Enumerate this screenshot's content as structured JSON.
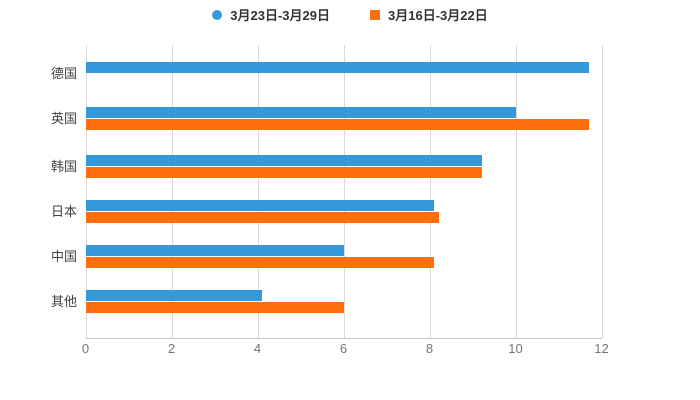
{
  "chart_data": {
    "type": "bar",
    "orientation": "horizontal",
    "title": "",
    "categories": [
      "德国",
      "英国",
      "韩国",
      "日本",
      "中国",
      "其他"
    ],
    "category_slugs": [
      "germany",
      "uk",
      "south-korea",
      "japan",
      "china",
      "other"
    ],
    "series": [
      {
        "name": "3月23日-3月29日",
        "color": "#3499db",
        "marker": "circle",
        "values": [
          11.7,
          10.0,
          9.2,
          8.1,
          6.0,
          4.1
        ]
      },
      {
        "name": "3月16日-3月22日",
        "color": "#ff6d0d",
        "marker": "square",
        "values": [
          null,
          11.7,
          9.2,
          8.2,
          8.1,
          6.0
        ]
      }
    ],
    "xlim": [
      0,
      12
    ],
    "xticks": [
      0,
      2,
      4,
      6,
      8,
      10,
      12
    ],
    "xlabel": "",
    "ylabel": "",
    "grid": true,
    "legend_position": "top",
    "style": {
      "grid_color": "#d9d9d9",
      "axis_line_color": "#c9c9c9",
      "tick_label_color": "#757575",
      "category_label_color": "#404040",
      "legend_text_color": "#333333",
      "background": "#ffffff"
    }
  }
}
